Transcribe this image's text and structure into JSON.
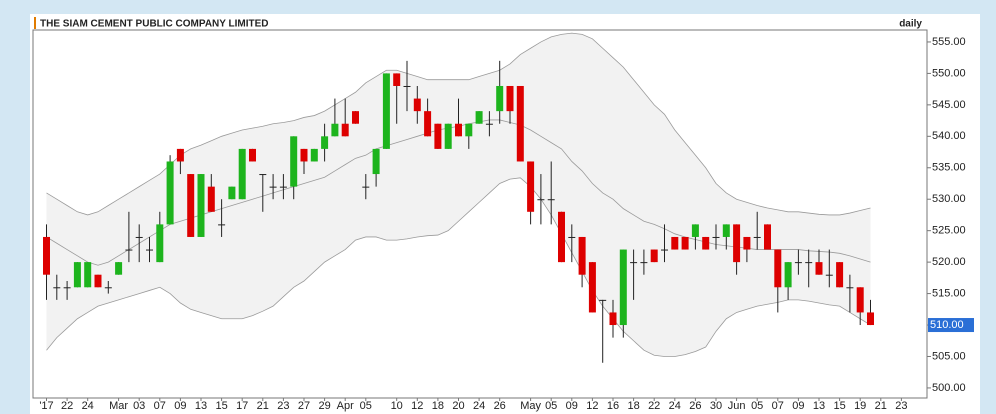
{
  "chart_data": {
    "type": "candlestick",
    "title": "THE SIAM CEMENT PUBLIC COMPANY LIMITED",
    "interval": "daily",
    "categories": [
      "'17",
      null,
      "22",
      null,
      "24",
      null,
      null,
      "Mar",
      null,
      "03",
      null,
      "07",
      null,
      "09",
      null,
      "13",
      null,
      "15",
      null,
      "17",
      null,
      "21",
      null,
      "23",
      null,
      "27",
      null,
      "29",
      null,
      "Apr",
      null,
      "05",
      null,
      null,
      "10",
      null,
      "12",
      null,
      "18",
      null,
      "20",
      null,
      "24",
      null,
      "26",
      null,
      null,
      "May",
      null,
      "05",
      null,
      "09",
      null,
      "12",
      null,
      "16",
      null,
      "18",
      null,
      "22",
      null,
      "24",
      null,
      "26",
      null,
      "30",
      null,
      "Jun",
      null,
      "05",
      null,
      "07",
      null,
      "09",
      null,
      "13",
      null,
      "15",
      null,
      "19",
      null,
      "21",
      null,
      "23"
    ],
    "open": [
      524,
      516,
      516,
      516,
      516,
      518,
      516,
      518,
      522,
      524,
      522,
      520,
      526,
      538,
      534,
      524,
      532,
      526,
      530,
      530,
      538,
      534,
      532,
      532,
      532,
      538,
      536,
      538,
      540,
      542,
      544,
      532,
      534,
      538,
      550,
      548,
      546,
      544,
      542,
      538,
      542,
      540,
      542,
      542,
      544,
      548,
      548,
      536,
      530,
      530,
      528,
      524,
      524,
      520,
      514,
      512,
      510,
      520,
      520,
      522,
      522,
      524,
      524,
      524,
      524,
      524,
      524,
      526,
      524,
      524,
      526,
      522,
      516,
      520,
      520,
      520,
      518,
      520,
      516,
      516,
      512,
      null,
      null,
      null
    ],
    "high": [
      526,
      518,
      517,
      520,
      520,
      518,
      517,
      520,
      528,
      526,
      524,
      528,
      537,
      538,
      534,
      534,
      534,
      530,
      532,
      538,
      538,
      534,
      534,
      534,
      540,
      538,
      538,
      542,
      546,
      546,
      544,
      534,
      538,
      550,
      550,
      552,
      548,
      546,
      542,
      542,
      546,
      542,
      544,
      544,
      552,
      548,
      548,
      536,
      534,
      536,
      528,
      526,
      524,
      520,
      514,
      514,
      522,
      522,
      522,
      522,
      526,
      524,
      524,
      526,
      524,
      526,
      526,
      526,
      524,
      528,
      526,
      522,
      520,
      522,
      522,
      522,
      522,
      520,
      518,
      516,
      514,
      null,
      null,
      null
    ],
    "low": [
      514,
      514,
      514,
      516,
      516,
      516,
      515,
      518,
      520,
      520,
      520,
      520,
      526,
      534,
      524,
      524,
      528,
      524,
      530,
      530,
      536,
      528,
      530,
      530,
      530,
      534,
      536,
      536,
      540,
      540,
      542,
      530,
      532,
      538,
      542,
      544,
      542,
      540,
      538,
      538,
      540,
      538,
      542,
      540,
      542,
      542,
      536,
      526,
      526,
      526,
      520,
      520,
      516,
      512,
      504,
      508,
      508,
      514,
      518,
      520,
      520,
      522,
      522,
      522,
      522,
      522,
      522,
      518,
      520,
      522,
      522,
      512,
      514,
      518,
      516,
      518,
      516,
      516,
      512,
      510,
      510,
      null,
      null,
      null
    ],
    "close": [
      518,
      516,
      516,
      520,
      520,
      516,
      516,
      520,
      522,
      524,
      522,
      526,
      536,
      536,
      524,
      534,
      528,
      526,
      532,
      538,
      536,
      534,
      532,
      532,
      540,
      536,
      538,
      540,
      542,
      540,
      542,
      532,
      538,
      550,
      548,
      548,
      544,
      540,
      538,
      542,
      540,
      542,
      544,
      542,
      548,
      544,
      536,
      528,
      530,
      530,
      520,
      524,
      518,
      512,
      514,
      510,
      522,
      520,
      520,
      520,
      522,
      522,
      522,
      526,
      522,
      524,
      526,
      520,
      522,
      524,
      522,
      516,
      520,
      520,
      520,
      518,
      518,
      516,
      516,
      512,
      510,
      null,
      null,
      null
    ],
    "upper_band": [
      531,
      530,
      529,
      528,
      527.5,
      528,
      529,
      530,
      531,
      532,
      533,
      534,
      535.5,
      537,
      538,
      538.6,
      539.3,
      540,
      540.5,
      541,
      541.3,
      541.6,
      542,
      542.2,
      542.5,
      543,
      543.3,
      544,
      545,
      546,
      547,
      548.5,
      549.5,
      550.5,
      550.5,
      550,
      549.5,
      549,
      549,
      549,
      549,
      549,
      549.5,
      550,
      550.5,
      551.5,
      553,
      554,
      555,
      555.8,
      556.2,
      556.4,
      556.2,
      555.5,
      554,
      552.5,
      551,
      549,
      547,
      545,
      543.5,
      541,
      539,
      537,
      535,
      532.5,
      531,
      530,
      529.5,
      529,
      528.6,
      528.3,
      528,
      528,
      527.8,
      527.6,
      527.5,
      527.5,
      527.8,
      528.2,
      528.6,
      null,
      null,
      null
    ],
    "middle_band": [
      524,
      523,
      522,
      521,
      520,
      519.5,
      520,
      521,
      522,
      523,
      524,
      525,
      526,
      526.5,
      527,
      527.5,
      528,
      528.5,
      529,
      529.5,
      530,
      530.5,
      531,
      531.5,
      532,
      532.5,
      533,
      533.5,
      534.5,
      535.5,
      536.5,
      537,
      538,
      538.5,
      539,
      539.5,
      540,
      540.5,
      541,
      541.3,
      541.6,
      542,
      542.3,
      542.6,
      542.6,
      542.2,
      541.8,
      541,
      540,
      539,
      538,
      536,
      534.5,
      532.5,
      531,
      530,
      528.5,
      527.5,
      526.5,
      526,
      525.3,
      524.5,
      524,
      523.6,
      523.2,
      522.8,
      522.6,
      522.4,
      522.2,
      522,
      522,
      522,
      522,
      522,
      521.8,
      521.7,
      521.6,
      521.4,
      521,
      520.5,
      520,
      null,
      null,
      null
    ],
    "lower_band": [
      506,
      508,
      509.5,
      511,
      512,
      513,
      513.5,
      514,
      514.5,
      515,
      515.5,
      516,
      515,
      513.5,
      512.5,
      512,
      511.5,
      511,
      511,
      511,
      511.5,
      512.2,
      513,
      514.5,
      516,
      517,
      518.5,
      520,
      521,
      522,
      523.5,
      524,
      524,
      523.5,
      523.5,
      523.7,
      524,
      524.2,
      524.3,
      525,
      526.5,
      528,
      529.5,
      531,
      532.5,
      533.2,
      533.4,
      532,
      530,
      527.5,
      524.5,
      521.5,
      518.5,
      515.5,
      513,
      511,
      509,
      507.5,
      506,
      505.2,
      505,
      505,
      505.3,
      505.8,
      506.5,
      509,
      511,
      512,
      512.5,
      513,
      513.3,
      513.6,
      514,
      514,
      513.8,
      513.5,
      513.2,
      513,
      512,
      511,
      510,
      null,
      null,
      null
    ],
    "up_color": "#1db41d",
    "down_color": "#dd0000",
    "band_fill": "#f2f2f2",
    "band_line": "#9a9a9a",
    "last_price_label": "510.00",
    "ylim": [
      498.4,
      556.9
    ],
    "yticks": [
      {
        "value": 500,
        "label": "500.00"
      },
      {
        "value": 505,
        "label": "505.00"
      },
      {
        "value": 510,
        "label": "510.00"
      },
      {
        "value": 515,
        "label": "515.00"
      },
      {
        "value": 520,
        "label": "520.00"
      },
      {
        "value": 525,
        "label": "525.00"
      },
      {
        "value": 530,
        "label": "530.00"
      },
      {
        "value": 535,
        "label": "535.00"
      },
      {
        "value": 540,
        "label": "540.00"
      },
      {
        "value": 545,
        "label": "545.00"
      },
      {
        "value": 550,
        "label": "550.00"
      },
      {
        "value": 555,
        "label": "555.00"
      }
    ]
  }
}
